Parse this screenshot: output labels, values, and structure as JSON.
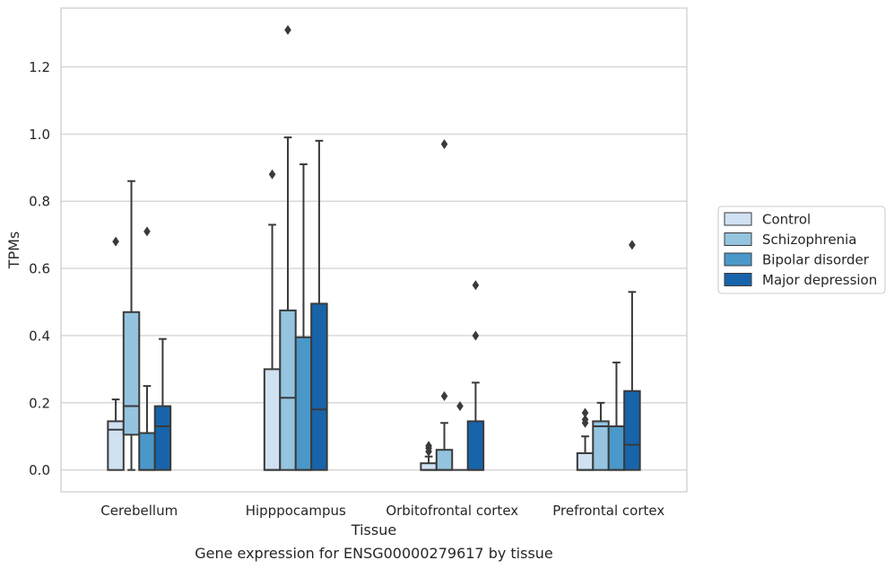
{
  "chart_data": {
    "type": "box",
    "title": "",
    "xlabel": "Tissue",
    "ylabel": "TPMs",
    "caption": "Gene expression for ENSG00000279617 by tissue",
    "ylim": [
      -0.065,
      1.375
    ],
    "yticks": [
      0.0,
      0.2,
      0.4,
      0.6,
      0.8,
      1.0,
      1.2
    ],
    "ytick_labels": [
      "0.0",
      "0.2",
      "0.4",
      "0.6",
      "0.8",
      "1.0",
      "1.2"
    ],
    "grid": "horizontal",
    "legend_position": "right",
    "categories": [
      "Cerebellum",
      "Hipppocampus",
      "Orbitofrontal cortex",
      "Prefrontal cortex"
    ],
    "series": [
      {
        "name": "Control",
        "color": "#d0e1f2",
        "boxes": [
          {
            "whislo": 0.0,
            "q1": 0.0,
            "med": 0.12,
            "q3": 0.145,
            "whishi": 0.21,
            "fliers": [
              0.68
            ]
          },
          {
            "whislo": 0.0,
            "q1": 0.0,
            "med": 0.0,
            "q3": 0.3,
            "whishi": 0.73,
            "fliers": [
              0.88
            ]
          },
          {
            "whislo": 0.0,
            "q1": 0.0,
            "med": 0.0,
            "q3": 0.02,
            "whishi": 0.04,
            "fliers": [
              0.055,
              0.065,
              0.072
            ]
          },
          {
            "whislo": 0.0,
            "q1": 0.0,
            "med": 0.0,
            "q3": 0.05,
            "whishi": 0.1,
            "fliers": [
              0.14,
              0.15,
              0.17
            ]
          }
        ]
      },
      {
        "name": "Schizophrenia",
        "color": "#94c4df",
        "boxes": [
          {
            "whislo": 0.0,
            "q1": 0.105,
            "med": 0.19,
            "q3": 0.47,
            "whishi": 0.86,
            "fliers": []
          },
          {
            "whislo": 0.0,
            "q1": 0.0,
            "med": 0.215,
            "q3": 0.475,
            "whishi": 0.99,
            "fliers": [
              1.31
            ]
          },
          {
            "whislo": 0.0,
            "q1": 0.0,
            "med": 0.0,
            "q3": 0.06,
            "whishi": 0.14,
            "fliers": [
              0.22,
              0.97
            ]
          },
          {
            "whislo": 0.0,
            "q1": 0.0,
            "med": 0.13,
            "q3": 0.145,
            "whishi": 0.2,
            "fliers": []
          }
        ]
      },
      {
        "name": "Bipolar disorder",
        "color": "#4a98c9",
        "boxes": [
          {
            "whislo": 0.0,
            "q1": 0.0,
            "med": 0.0,
            "q3": 0.11,
            "whishi": 0.25,
            "fliers": [
              0.71
            ]
          },
          {
            "whislo": 0.0,
            "q1": 0.0,
            "med": 0.0,
            "q3": 0.395,
            "whishi": 0.91,
            "fliers": []
          },
          {
            "whislo": 0.0,
            "q1": 0.0,
            "med": 0.0,
            "q3": 0.0,
            "whishi": 0.0,
            "fliers": [
              0.19
            ]
          },
          {
            "whislo": 0.0,
            "q1": 0.0,
            "med": 0.0,
            "q3": 0.13,
            "whishi": 0.32,
            "fliers": []
          }
        ]
      },
      {
        "name": "Major depression",
        "color": "#1764ab",
        "boxes": [
          {
            "whislo": 0.0,
            "q1": 0.0,
            "med": 0.13,
            "q3": 0.19,
            "whishi": 0.39,
            "fliers": []
          },
          {
            "whislo": 0.0,
            "q1": 0.0,
            "med": 0.18,
            "q3": 0.495,
            "whishi": 0.98,
            "fliers": []
          },
          {
            "whislo": 0.0,
            "q1": 0.0,
            "med": 0.0,
            "q3": 0.145,
            "whishi": 0.26,
            "fliers": [
              0.4,
              0.55
            ]
          },
          {
            "whislo": 0.0,
            "q1": 0.0,
            "med": 0.075,
            "q3": 0.235,
            "whishi": 0.53,
            "fliers": [
              0.67
            ]
          }
        ]
      }
    ]
  }
}
